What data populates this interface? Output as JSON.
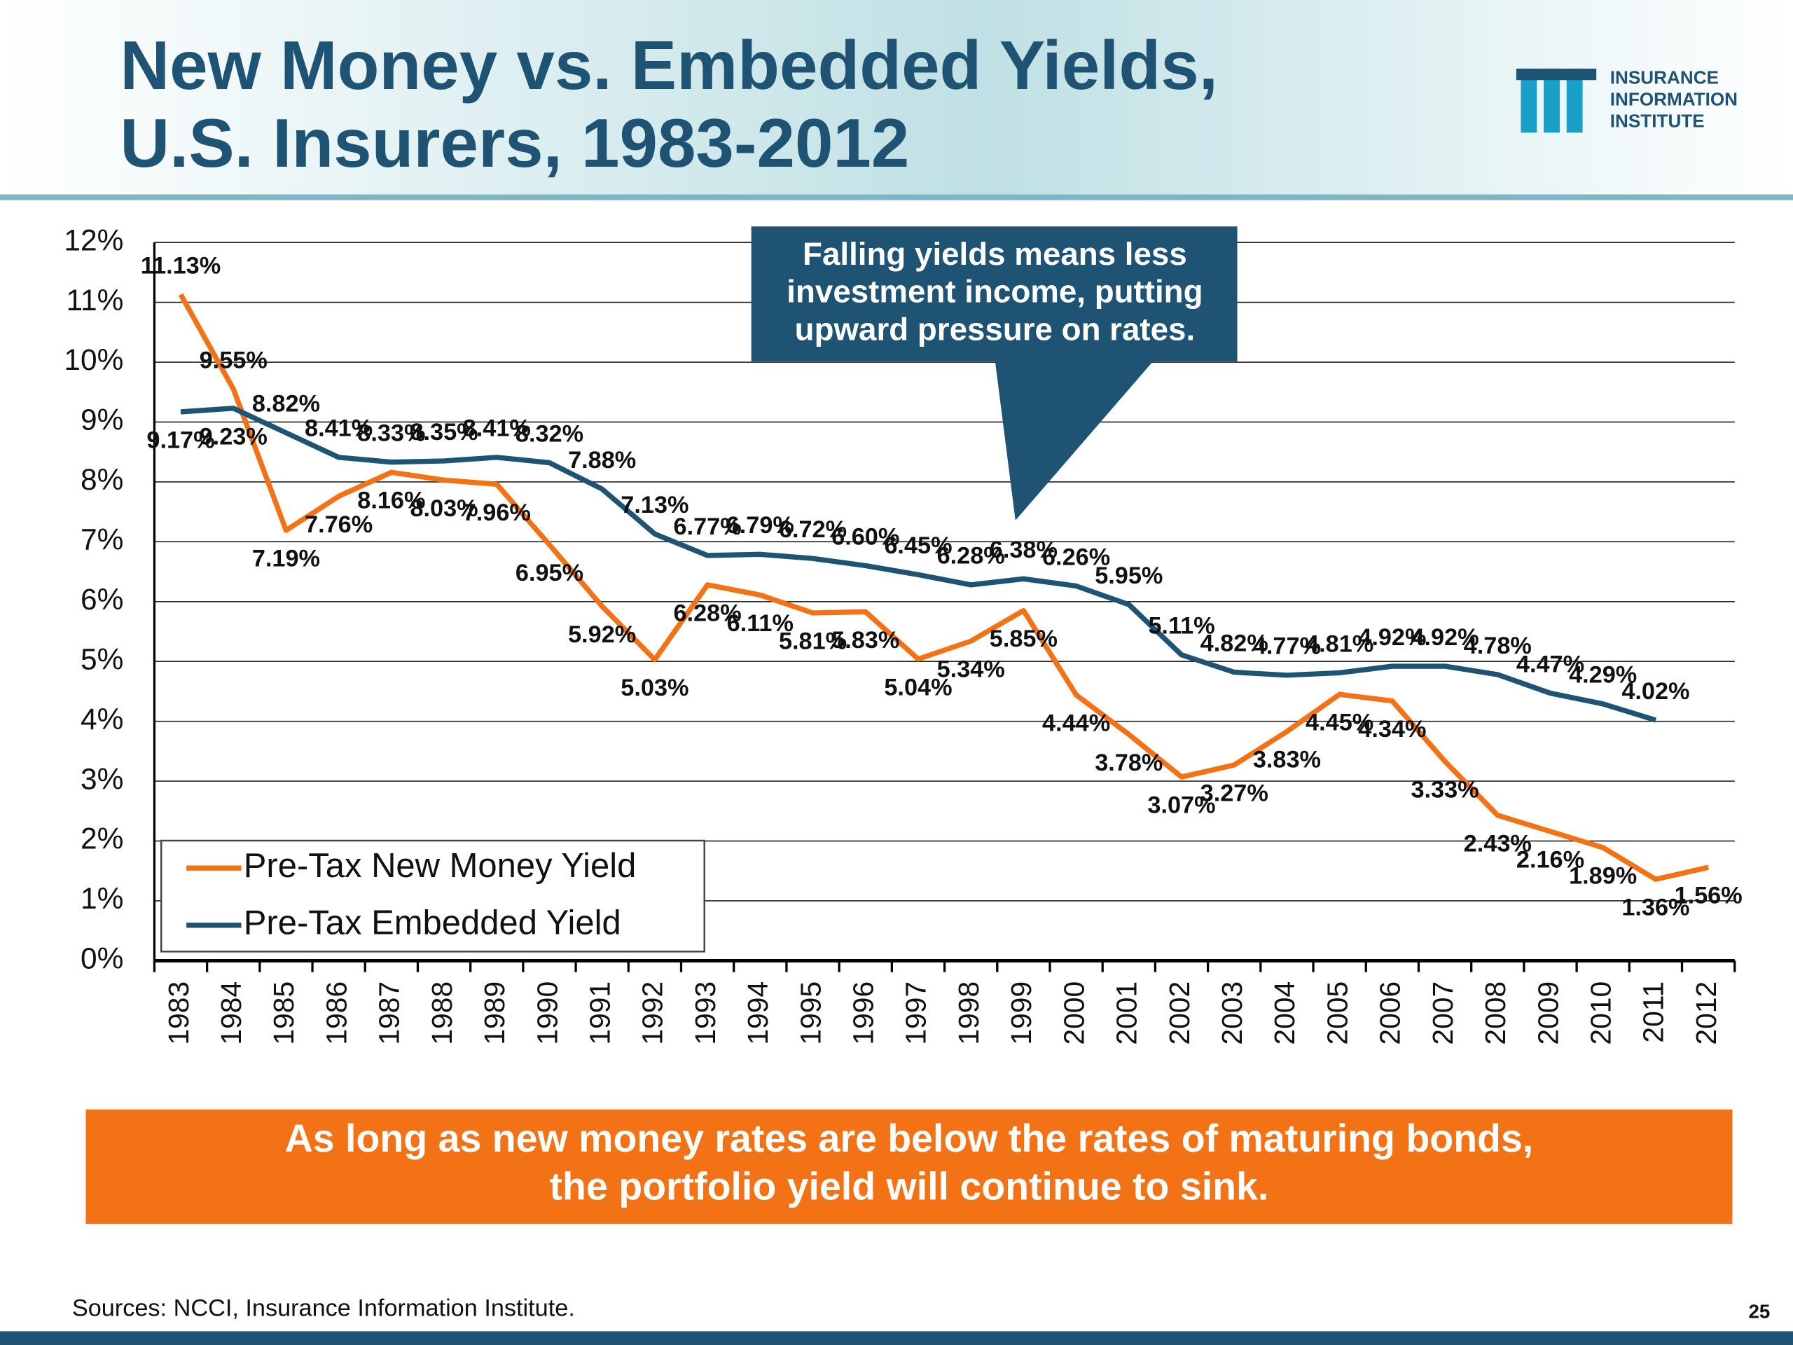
{
  "chart_data": {
    "type": "line",
    "title": [
      "New Money vs. Embedded Yields,",
      "U.S. Insurers, 1983-2012"
    ],
    "categories": [
      "1983",
      "1984",
      "1985",
      "1986",
      "1987",
      "1988",
      "1989",
      "1990",
      "1991",
      "1992",
      "1993",
      "1994",
      "1995",
      "1996",
      "1997",
      "1998",
      "1999",
      "2000",
      "2001",
      "2002",
      "2003",
      "2004",
      "2005",
      "2006",
      "2007",
      "2008",
      "2009",
      "2010",
      "2011",
      "2012"
    ],
    "series": [
      {
        "name": "Pre-Tax New Money Yield",
        "color": "#f47216",
        "values": [
          11.13,
          9.55,
          7.19,
          7.76,
          8.16,
          8.03,
          7.96,
          6.95,
          5.92,
          5.03,
          6.28,
          6.11,
          5.81,
          5.83,
          5.04,
          5.34,
          5.85,
          4.44,
          3.78,
          3.07,
          3.27,
          3.83,
          4.45,
          4.34,
          3.33,
          2.43,
          2.16,
          1.89,
          1.36,
          1.56
        ],
        "value_labels": [
          "11.13%",
          "9.55%",
          "7.19%",
          "7.76%",
          "8.16%",
          "8.03%",
          "7.96%",
          "6.95%",
          "5.92%",
          "5.03%",
          "6.28%",
          "6.11%",
          "5.81%",
          "5.83%",
          "5.04%",
          "5.34%",
          "5.85%",
          "4.44%",
          "3.78%",
          "3.07%",
          "3.27%",
          "3.83%",
          "4.45%",
          "4.34%",
          "3.33%",
          "2.43%",
          "2.16%",
          "1.89%",
          "1.36%",
          "1.56%"
        ]
      },
      {
        "name": "Pre-Tax Embedded Yield",
        "color": "#1f5374",
        "values": [
          9.17,
          9.23,
          8.82,
          8.41,
          8.33,
          8.35,
          8.41,
          8.32,
          7.88,
          7.13,
          6.77,
          6.79,
          6.72,
          6.6,
          6.45,
          6.28,
          6.38,
          6.26,
          5.95,
          5.11,
          4.82,
          4.77,
          4.81,
          4.92,
          4.92,
          4.78,
          4.47,
          4.29,
          4.02,
          null
        ],
        "value_labels": [
          "9.17%",
          "9.23%",
          "8.82%",
          "8.41%",
          "8.33%",
          "8.35%",
          "8.41%",
          "8.32%",
          "7.88%",
          "7.13%",
          "6.77%",
          "6.79%",
          "6.72%",
          "6.60%",
          "6.45%",
          "6.28%",
          "6.38%",
          "6.26%",
          "5.95%",
          "5.11%",
          "4.82%",
          "4.77%",
          "4.81%",
          "4.92%",
          "4.92%",
          "4.78%",
          "4.47%",
          "4.29%",
          "4.02%",
          null
        ]
      }
    ],
    "ylim": [
      0,
      12
    ],
    "yticks": [
      {
        "value": 0,
        "label": "0%"
      },
      {
        "value": 1,
        "label": "1%"
      },
      {
        "value": 2,
        "label": "2%"
      },
      {
        "value": 3,
        "label": "3%"
      },
      {
        "value": 4,
        "label": "4%"
      },
      {
        "value": 5,
        "label": "5%"
      },
      {
        "value": 6,
        "label": "6%"
      },
      {
        "value": 7,
        "label": "7%"
      },
      {
        "value": 8,
        "label": "8%"
      },
      {
        "value": 9,
        "label": "9%"
      },
      {
        "value": 10,
        "label": "10%"
      },
      {
        "value": 11,
        "label": "11%"
      },
      {
        "value": 12,
        "label": "12%"
      }
    ],
    "grid": true,
    "legend": "lower left",
    "annotation": [
      "Falling yields means less",
      "investment income, putting",
      "upward pressure on rates."
    ]
  },
  "logo": [
    "INSURANCE",
    "INFORMATION",
    "INSTITUTE"
  ],
  "banner": [
    "As long as new money rates are below the rates of maturing bonds,",
    "the portfolio yield will continue to sink."
  ],
  "source": "Sources: NCCI, Insurance Information Institute.",
  "page_number": "25"
}
